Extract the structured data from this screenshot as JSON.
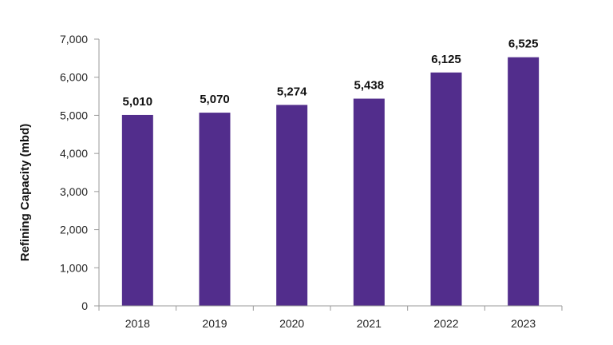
{
  "chart_data": {
    "type": "bar",
    "categories": [
      "2018",
      "2019",
      "2020",
      "2021",
      "2022",
      "2023"
    ],
    "values": [
      5010,
      5070,
      5274,
      5438,
      6125,
      6525
    ],
    "data_labels": [
      "5,010",
      "5,070",
      "5,274",
      "5,438",
      "6,125",
      "6,525"
    ],
    "y_ticks": [
      0,
      1000,
      2000,
      3000,
      4000,
      5000,
      6000,
      7000
    ],
    "y_tick_labels": [
      "0",
      "1,000",
      "2,000",
      "3,000",
      "4,000",
      "5,000",
      "6,000",
      "7,000"
    ],
    "ylim": [
      0,
      7000
    ],
    "ylabel": "Refining Capacity (mbd)",
    "xlabel": "",
    "title": "",
    "grid": false,
    "legend": "none",
    "bar_color": "#522d8c"
  }
}
